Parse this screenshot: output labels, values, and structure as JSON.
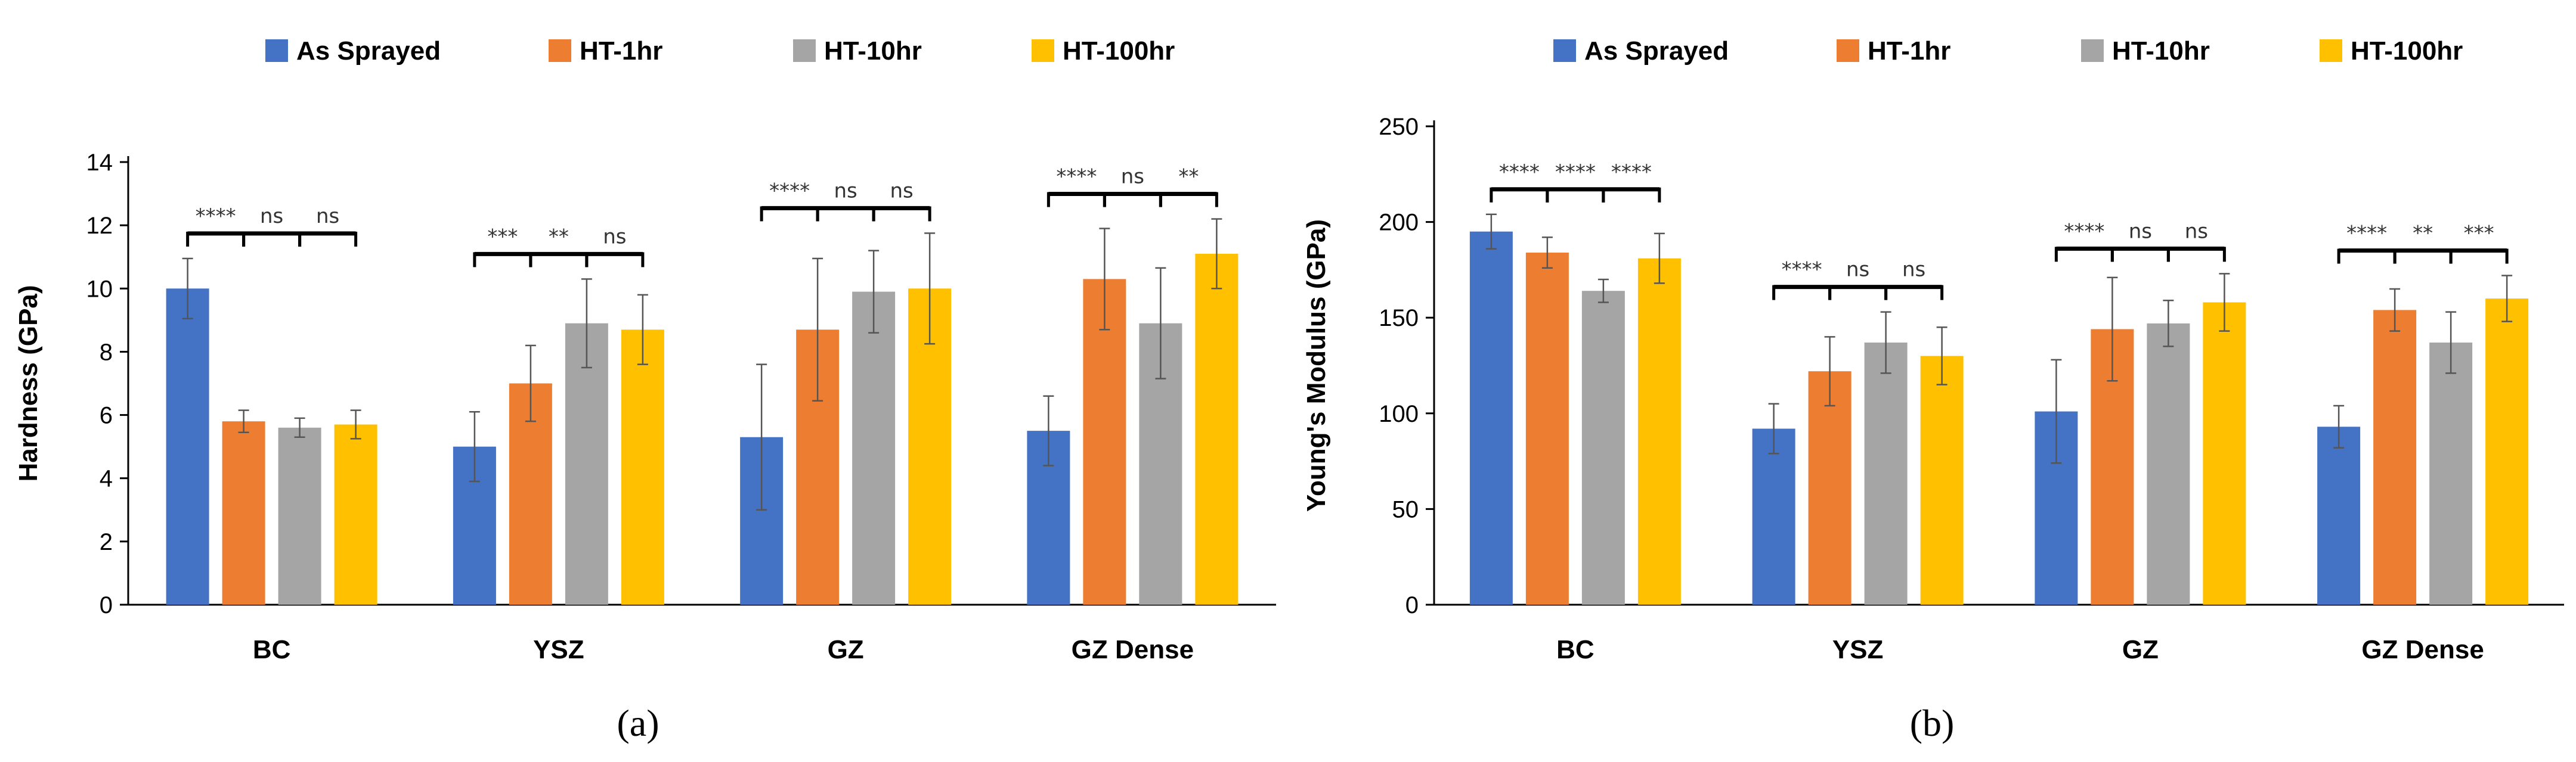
{
  "colors": {
    "As Sprayed": "#4472C4",
    "HT-1hr": "#ED7D31",
    "HT-10hr": "#A5A5A5",
    "HT-100hr": "#FFC000"
  },
  "chart_data": [
    {
      "type": "bar",
      "panel_label": "(a)",
      "title": "",
      "xlabel": "",
      "ylabel": "Hardness (GPa)",
      "ylim": [
        0,
        14
      ],
      "yticks": [
        0,
        2,
        4,
        6,
        8,
        10,
        12,
        14
      ],
      "grid": false,
      "legend": "top",
      "categories": [
        "BC",
        "YSZ",
        "GZ",
        "GZ Dense"
      ],
      "series": [
        {
          "name": "As Sprayed",
          "values": [
            10.0,
            5.0,
            5.3,
            5.5
          ],
          "errors": [
            0.95,
            1.1,
            2.3,
            1.1
          ]
        },
        {
          "name": "HT-1hr",
          "values": [
            5.8,
            7.0,
            8.7,
            10.3
          ],
          "errors": [
            0.35,
            1.2,
            2.25,
            1.6
          ]
        },
        {
          "name": "HT-10hr",
          "values": [
            5.6,
            8.9,
            9.9,
            8.9
          ],
          "errors": [
            0.3,
            1.4,
            1.3,
            1.75
          ]
        },
        {
          "name": "HT-100hr",
          "values": [
            5.7,
            8.7,
            10.0,
            11.1
          ],
          "errors": [
            0.45,
            1.1,
            1.75,
            1.1
          ]
        }
      ],
      "significance": [
        [
          "****",
          "ns",
          "ns"
        ],
        [
          "***",
          "**",
          "ns"
        ],
        [
          "****",
          "ns",
          "ns"
        ],
        [
          "****",
          "ns",
          "**"
        ]
      ]
    },
    {
      "type": "bar",
      "panel_label": "(b)",
      "title": "",
      "xlabel": "",
      "ylabel": "Young's Modulus (GPa)",
      "ylim": [
        0,
        250
      ],
      "yticks": [
        0,
        50,
        100,
        150,
        200,
        250
      ],
      "grid": false,
      "legend": "top",
      "categories": [
        "BC",
        "YSZ",
        "GZ",
        "GZ Dense"
      ],
      "series": [
        {
          "name": "As Sprayed",
          "values": [
            195,
            92,
            101,
            93
          ],
          "errors": [
            9,
            13,
            27,
            11
          ]
        },
        {
          "name": "HT-1hr",
          "values": [
            184,
            122,
            144,
            154
          ],
          "errors": [
            8,
            18,
            27,
            11
          ]
        },
        {
          "name": "HT-10hr",
          "values": [
            164,
            137,
            147,
            137
          ],
          "errors": [
            6,
            16,
            12,
            16
          ]
        },
        {
          "name": "HT-100hr",
          "values": [
            181,
            130,
            158,
            160
          ],
          "errors": [
            13,
            15,
            15,
            12
          ]
        }
      ],
      "significance": [
        [
          "****",
          "****",
          "****"
        ],
        [
          "****",
          "ns",
          "ns"
        ],
        [
          "****",
          "ns",
          "ns"
        ],
        [
          "****",
          "**",
          "***"
        ]
      ]
    }
  ]
}
